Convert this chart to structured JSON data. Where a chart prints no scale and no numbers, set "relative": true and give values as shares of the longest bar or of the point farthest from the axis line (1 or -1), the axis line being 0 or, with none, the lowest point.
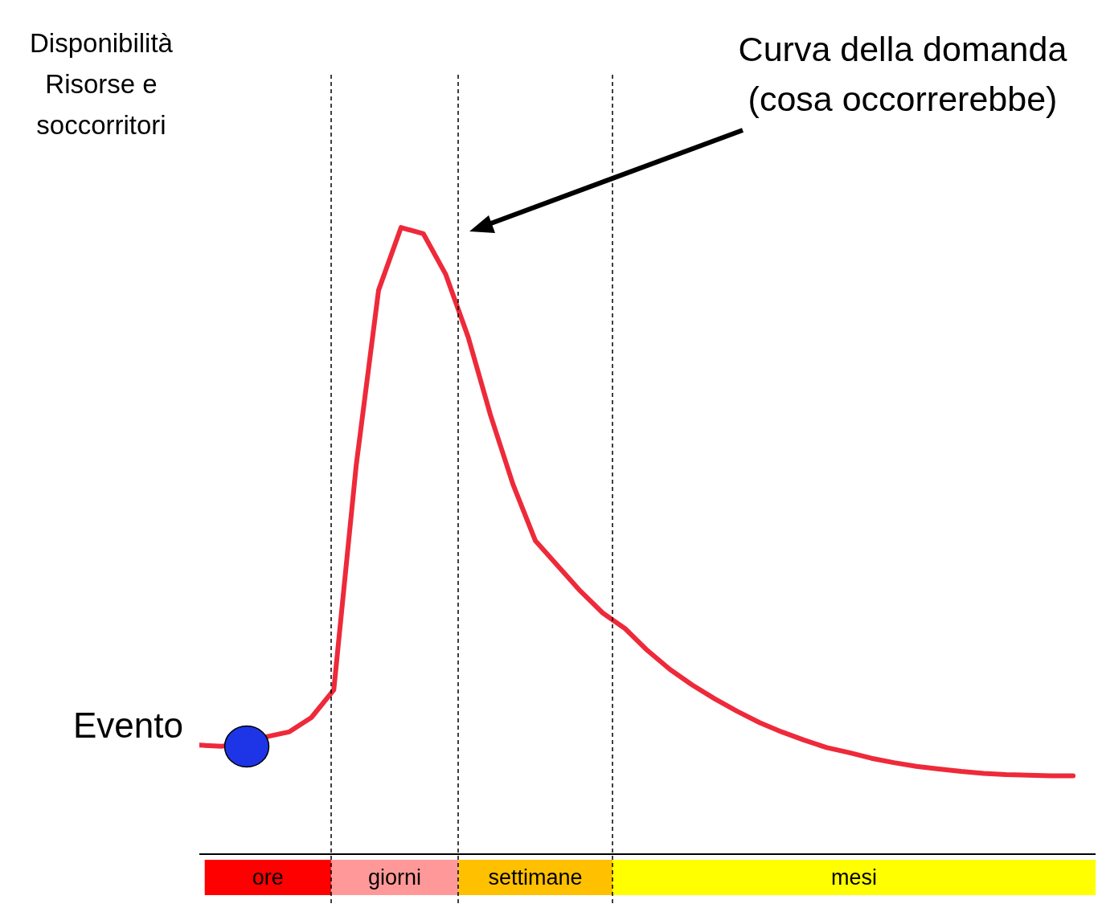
{
  "chart_data": {
    "type": "line",
    "relative": true,
    "ylabel": "Disponibilità\nRisorse e\nsoccorritori",
    "marker": "none",
    "line_style": "solid",
    "categories": [
      null,
      null,
      null,
      null,
      null,
      null,
      null,
      null,
      null,
      null,
      null,
      null,
      null,
      null,
      null,
      null,
      null,
      null,
      null,
      null,
      null,
      null,
      null,
      null,
      null,
      null,
      null,
      null,
      null,
      null,
      null,
      null,
      null,
      null,
      null,
      null,
      null,
      null,
      null,
      null
    ],
    "annotations": [
      "Curva della domanda\n(cosa occorrerebbe)",
      "Evento",
      "ore",
      "giorni",
      "settimane",
      "mesi"
    ],
    "series": [
      {
        "color": "#ee2a3a",
        "values": [
          0.174,
          0.172,
          null,
          null,
          0.195,
          0.218,
          0.262,
          0.62,
          0.9,
          1,
          0.99,
          0.925,
          0.825,
          0.7,
          0.59,
          0.5,
          0.46,
          0.42,
          0.385,
          0.36,
          0.325,
          0.295,
          0.27,
          0.248,
          0.228,
          0.21,
          0.195,
          0.182,
          0.17,
          0.162,
          0.153,
          0.146,
          0.14,
          0.136,
          0.132,
          0.129,
          0.127,
          0.126,
          0.125,
          0.125
        ]
      }
    ]
  }
}
